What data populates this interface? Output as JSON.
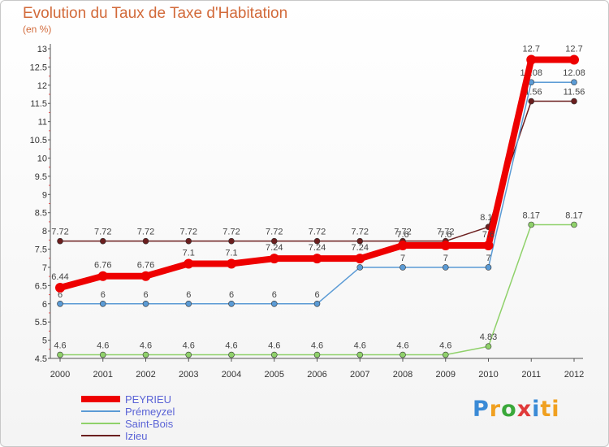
{
  "chart_data": {
    "type": "line",
    "title": "Evolution du Taux de Taxe d'Habitation",
    "unit_label": "(en %)",
    "x": [
      "2000",
      "2001",
      "2002",
      "2003",
      "2004",
      "2005",
      "2006",
      "2007",
      "2008",
      "2009",
      "2010",
      "2011",
      "2012"
    ],
    "ylim": [
      4.5,
      13
    ],
    "yticks": [
      "4.5",
      "5",
      "5.5",
      "6",
      "6.5",
      "7",
      "7.5",
      "8",
      "8.5",
      "9",
      "9.5",
      "10",
      "10.5",
      "11",
      "11.5",
      "12",
      "12.5",
      "13"
    ],
    "grid": false,
    "legend_position": "bottom-left",
    "series": [
      {
        "name": "Izieu",
        "color": "#6b1e1e",
        "values": [
          7.72,
          7.72,
          7.72,
          7.72,
          7.72,
          7.72,
          7.72,
          7.72,
          7.72,
          7.72,
          8.11,
          11.56,
          11.56
        ],
        "labels": [
          "7.72",
          "7.72",
          "7.72",
          "7.72",
          "7.72",
          "7.72",
          "7.72",
          "7.72",
          "7.72",
          "7.72",
          "8.11",
          "11.56",
          "11.56"
        ]
      },
      {
        "name": "Prémeyzel",
        "color": "#5b9bd5",
        "values": [
          6,
          6,
          6,
          6,
          6,
          6,
          6,
          7,
          7,
          7,
          7,
          12.08,
          12.08
        ],
        "labels": [
          "6",
          "6",
          "6",
          "6",
          "6",
          "6",
          "6",
          "7",
          "7",
          "7",
          "7",
          "12.08",
          "12.08"
        ]
      },
      {
        "name": "Saint-Bois",
        "color": "#8fd16a",
        "values": [
          4.6,
          4.6,
          4.6,
          4.6,
          4.6,
          4.6,
          4.6,
          4.6,
          4.6,
          4.6,
          4.83,
          8.17,
          8.17
        ],
        "labels": [
          "4.6",
          "4.6",
          "4.6",
          "4.6",
          "4.6",
          "4.6",
          "4.6",
          "4.6",
          "4.6",
          "4.6",
          "4.83",
          "8.17",
          "8.17"
        ]
      },
      {
        "name": "PEYRIEU",
        "color": "#ee0000",
        "values": [
          6.44,
          6.76,
          6.76,
          7.1,
          7.1,
          7.24,
          7.24,
          7.24,
          7.6,
          7.6,
          7.6,
          12.7,
          12.7
        ],
        "labels": [
          "6.44",
          "6.76",
          "6.76",
          "7.1",
          "7.1",
          "7.24",
          "7.24",
          "7.24",
          "7.6",
          "7.6",
          "7.6",
          "12.7",
          "12.7"
        ]
      }
    ],
    "legend_order": [
      "PEYRIEU",
      "Prémeyzel",
      "Saint-Bois",
      "Izieu"
    ]
  },
  "brand": {
    "letters": [
      "P",
      "r",
      "o",
      "x",
      "i",
      "ti"
    ]
  }
}
